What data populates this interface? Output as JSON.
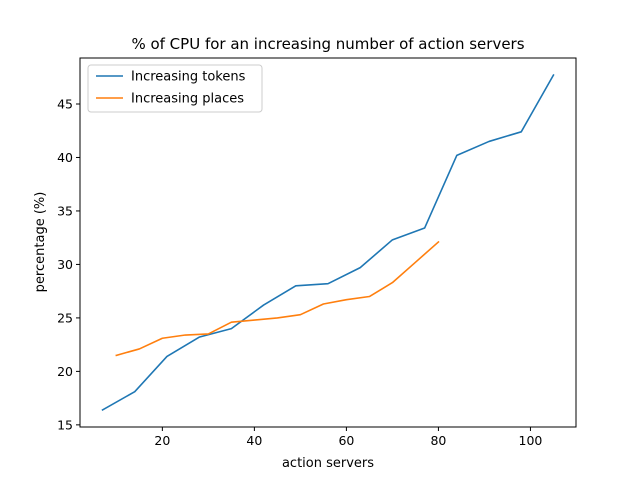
{
  "chart_data": {
    "type": "line",
    "title": "% of CPU for an increasing number of action servers",
    "xlabel": "action servers",
    "ylabel": "percentage (%)",
    "xlim": [
      2.1,
      109.9
    ],
    "ylim": [
      14.8,
      49.3
    ],
    "xticks": [
      20,
      40,
      60,
      80,
      100
    ],
    "yticks": [
      15,
      20,
      25,
      30,
      35,
      40,
      45
    ],
    "grid": false,
    "legend_position": "top-left",
    "series": [
      {
        "name": "Increasing tokens",
        "color": "#1f77b4",
        "x": [
          7,
          14,
          21,
          28,
          35,
          42,
          49,
          56,
          63,
          70,
          77,
          84,
          91,
          98,
          105
        ],
        "y": [
          16.4,
          18.1,
          21.4,
          23.2,
          24.0,
          26.2,
          28.0,
          28.2,
          29.7,
          32.3,
          33.4,
          40.2,
          41.5,
          42.4,
          47.7
        ]
      },
      {
        "name": "Increasing places",
        "color": "#ff7f0e",
        "x": [
          10,
          15,
          20,
          25,
          30,
          35,
          40,
          45,
          50,
          55,
          60,
          65,
          70,
          75,
          80
        ],
        "y": [
          21.5,
          22.1,
          23.1,
          23.4,
          23.5,
          24.6,
          24.8,
          25.0,
          25.3,
          26.3,
          26.7,
          27.0,
          28.3,
          30.2,
          32.1
        ]
      }
    ]
  }
}
